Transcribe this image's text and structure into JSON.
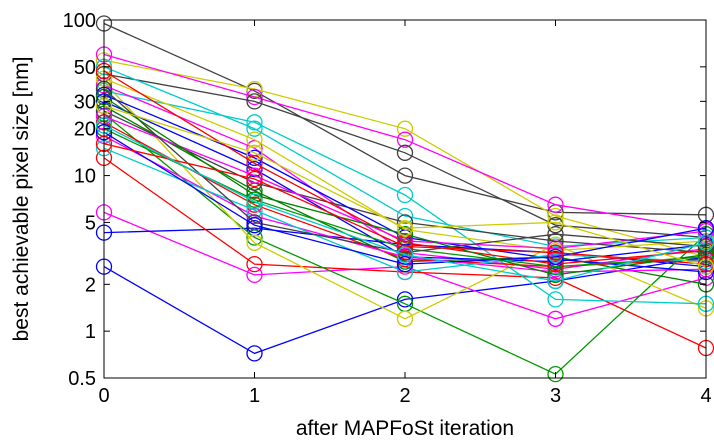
{
  "chart_data": {
    "type": "line",
    "title": "",
    "xlabel": "after MAPFoSt iteration",
    "ylabel": "best achievable pixel size [nm]",
    "x": [
      0,
      1,
      2,
      3,
      4
    ],
    "xlim": [
      0,
      4
    ],
    "ylim": [
      0.5,
      100
    ],
    "yscale": "log",
    "x_tick_labels": [
      "0",
      "1",
      "2",
      "3",
      "4"
    ],
    "y_tick_values": [
      0.5,
      1,
      2,
      5,
      10,
      20,
      30,
      50,
      100
    ],
    "y_tick_labels": [
      "0.5",
      "1",
      "2",
      "5",
      "10",
      "20",
      "30",
      "50",
      "100"
    ],
    "marker": "open-circle",
    "grid": false,
    "legend": "none",
    "series": [
      {
        "color": "#404040",
        "values": [
          95,
          35,
          10,
          5.8,
          5.6
        ]
      },
      {
        "color": "#0000ff",
        "values": [
          2.6,
          0.72,
          1.6,
          2.1,
          3.0
        ]
      },
      {
        "color": "#ff00ff",
        "values": [
          5.8,
          2.3,
          2.6,
          1.2,
          2.2
        ]
      },
      {
        "color": "#0000ff",
        "values": [
          4.3,
          4.6,
          3.6,
          3.2,
          2.6
        ]
      },
      {
        "color": "#ff0000",
        "values": [
          13,
          2.7,
          2.4,
          2.2,
          0.78
        ]
      },
      {
        "color": "#009900",
        "values": [
          25,
          4.0,
          1.5,
          0.53,
          4.2
        ]
      },
      {
        "color": "#cccc00",
        "values": [
          40,
          3.7,
          1.2,
          3.6,
          1.4
        ]
      },
      {
        "color": "#cccc00",
        "values": [
          55,
          36,
          20,
          5.5,
          3.0
        ]
      },
      {
        "color": "#ff00ff",
        "values": [
          60,
          32,
          17,
          6.5,
          4.5
        ]
      },
      {
        "color": "#404040",
        "values": [
          45,
          30,
          14,
          4.8,
          4.0
        ]
      },
      {
        "color": "#00cccc",
        "values": [
          35,
          22,
          7.5,
          1.6,
          1.5
        ]
      },
      {
        "color": "#ff00ff",
        "values": [
          38,
          15,
          3.2,
          2.5,
          3.4
        ]
      },
      {
        "color": "#0000ff",
        "values": [
          30,
          11,
          3.0,
          2.8,
          3.6
        ]
      },
      {
        "color": "#008000",
        "values": [
          28,
          8.0,
          2.8,
          3.0,
          2.0
        ]
      },
      {
        "color": "#ff0000",
        "values": [
          22,
          6.5,
          2.9,
          2.6,
          2.9
        ]
      },
      {
        "color": "#00cccc",
        "values": [
          50,
          20,
          5.5,
          3.5,
          4.0
        ]
      },
      {
        "color": "#ff00ff",
        "values": [
          18,
          5.5,
          3.0,
          2.4,
          2.5
        ]
      },
      {
        "color": "#404040",
        "values": [
          26,
          9.0,
          5.0,
          3.8,
          3.2
        ]
      },
      {
        "color": "#0000ff",
        "values": [
          33,
          13,
          4.0,
          2.9,
          2.4
        ]
      },
      {
        "color": "#cccc00",
        "values": [
          42,
          17,
          4.5,
          3.3,
          3.8
        ]
      },
      {
        "color": "#009900",
        "values": [
          20,
          7.0,
          3.4,
          2.6,
          3.0
        ]
      },
      {
        "color": "#ff0000",
        "values": [
          47,
          12,
          3.7,
          2.7,
          3.3
        ]
      },
      {
        "color": "#00cccc",
        "values": [
          15,
          6.0,
          2.4,
          3.1,
          2.8
        ]
      },
      {
        "color": "#ff00ff",
        "values": [
          24,
          10,
          3.8,
          3.4,
          4.4
        ]
      },
      {
        "color": "#404040",
        "values": [
          36,
          5.0,
          3.2,
          4.2,
          3.5
        ]
      },
      {
        "color": "#0000ff",
        "values": [
          19,
          4.8,
          2.7,
          3.0,
          4.6
        ]
      },
      {
        "color": "#008000",
        "values": [
          32,
          7.5,
          4.2,
          2.3,
          3.1
        ]
      },
      {
        "color": "#ff0000",
        "values": [
          16,
          9.5,
          3.5,
          3.2,
          2.7
        ]
      },
      {
        "color": "#cccc00",
        "values": [
          28,
          14,
          4.6,
          5.0,
          2.6
        ]
      },
      {
        "color": "#00cccc",
        "values": [
          21,
          6.8,
          3.1,
          2.1,
          3.7
        ]
      }
    ]
  }
}
